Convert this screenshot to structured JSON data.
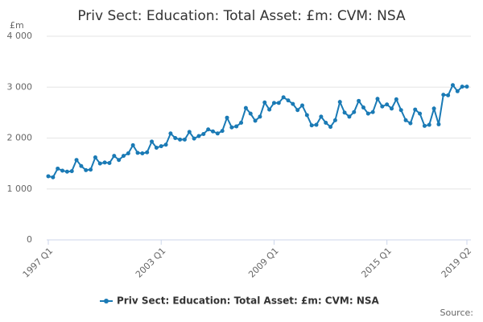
{
  "chart_data": {
    "type": "line",
    "title": "Priv Sect: Education: Total Asset: £m: CVM: NSA",
    "y_label": "£m",
    "source": "Source:",
    "categories": [
      "1997 Q1",
      null,
      null,
      null,
      null,
      null,
      null,
      null,
      null,
      null,
      null,
      null,
      null,
      null,
      null,
      null,
      null,
      null,
      null,
      null,
      null,
      null,
      null,
      null,
      "2003 Q1",
      null,
      null,
      null,
      null,
      null,
      null,
      null,
      null,
      null,
      null,
      null,
      null,
      null,
      null,
      null,
      null,
      null,
      null,
      null,
      null,
      null,
      null,
      null,
      "2009 Q1",
      null,
      null,
      null,
      null,
      null,
      null,
      null,
      null,
      null,
      null,
      null,
      null,
      null,
      null,
      null,
      null,
      null,
      null,
      null,
      null,
      null,
      null,
      null,
      "2015 Q1",
      null,
      null,
      null,
      null,
      null,
      null,
      null,
      null,
      null,
      null,
      null,
      null,
      null,
      null,
      null,
      null,
      "2019 Q2"
    ],
    "series": [
      {
        "name": "Priv Sect: Education: Total Asset: £m: CVM: NSA",
        "color": "#1a7ab5",
        "values": [
          1250,
          1230,
          1400,
          1360,
          1340,
          1350,
          1570,
          1450,
          1370,
          1380,
          1620,
          1500,
          1520,
          1510,
          1650,
          1570,
          1650,
          1700,
          1860,
          1710,
          1700,
          1720,
          1930,
          1810,
          1840,
          1870,
          2090,
          2000,
          1970,
          1970,
          2120,
          1990,
          2040,
          2080,
          2170,
          2130,
          2090,
          2140,
          2400,
          2210,
          2230,
          2300,
          2590,
          2480,
          2340,
          2420,
          2700,
          2560,
          2690,
          2690,
          2800,
          2740,
          2670,
          2550,
          2640,
          2450,
          2250,
          2260,
          2420,
          2300,
          2220,
          2350,
          2710,
          2500,
          2420,
          2510,
          2730,
          2600,
          2480,
          2510,
          2770,
          2620,
          2660,
          2580,
          2760,
          2550,
          2350,
          2290,
          2560,
          2480,
          2240,
          2260,
          2580,
          2270,
          2850,
          2840,
          3040,
          2920,
          3010,
          3010
        ]
      }
    ],
    "ylim": [
      0,
      4000
    ],
    "yticks": [
      0,
      {
        "value": 1000,
        "label": "1 000"
      },
      {
        "value": 2000,
        "label": "2 000"
      },
      {
        "value": 3000,
        "label": "3 000"
      },
      {
        "value": 4000,
        "label": "4 000"
      }
    ],
    "grid": true
  }
}
